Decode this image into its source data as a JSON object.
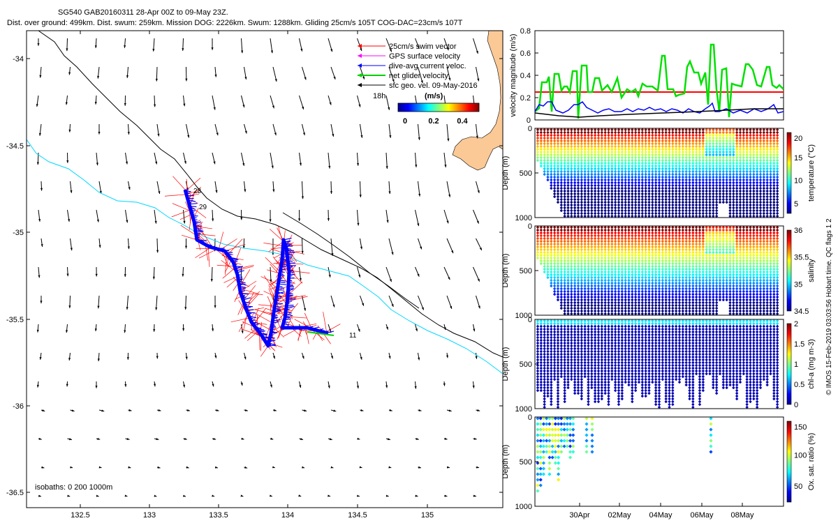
{
  "header": {
    "line1": "SG540 GAB20160311 28-Apr 00Z to 09-May 23Z.",
    "line2": "Dist. over ground: 499km. Dist. swum: 259km. Mission DOG: 2226km. Swum: 1288km. Gliding 25cm/s 105T COG-DAC=23cm/s 107T"
  },
  "map": {
    "lon_ticks": [
      "132.5",
      "133",
      "133.5",
      "134",
      "134.5",
      "135"
    ],
    "lat_ticks": [
      "-34",
      "-34.5",
      "-35",
      "-35.5",
      "-36",
      "-36.5"
    ],
    "isobaths_note": "isobaths: 0   200  1000m",
    "legend": [
      {
        "label": "25cm/s swim vector",
        "color": "#ff0000"
      },
      {
        "label": "GPS surface velocity",
        "color": "#ff00ff"
      },
      {
        "label": "dive-avg current veloc.",
        "color": "#0000ff"
      },
      {
        "label": "net glider velocity",
        "color": "#00d000"
      },
      {
        "label": "sfc geo. vel. 09-May-2016",
        "color": "#000000"
      }
    ],
    "time_label": "18h",
    "colorbar": {
      "unit": "(m/s)",
      "ticks": [
        "0",
        "0.2",
        "0.4"
      ]
    },
    "track_labels": [
      "28",
      "29",
      "11"
    ],
    "colors": {
      "land": "#fbc996",
      "isobath_0": "#000000",
      "isobath_200": "#00d8ff",
      "isobath_1000": "#000000"
    }
  },
  "velocity_panel": {
    "ylabel": "velocity magnitude (m/s)",
    "yticks": [
      "0",
      "0.2",
      "0.4",
      "0.6",
      "0.8"
    ],
    "ylim": [
      0,
      0.8
    ],
    "swim_level": 0.25
  },
  "section_panels": [
    {
      "ylabel": "Depth (m)",
      "yticks": [
        "0",
        "500",
        "1000"
      ],
      "cb_label": "temperature (°C)",
      "cb_ticks": [
        "5",
        "10",
        "15",
        "20"
      ]
    },
    {
      "ylabel": "Depth (m)",
      "yticks": [
        "0",
        "500",
        "1000"
      ],
      "cb_label": "salinity",
      "cb_ticks": [
        "34.5",
        "35",
        "35.5",
        "36"
      ]
    },
    {
      "ylabel": "Depth (m)",
      "yticks": [
        "0",
        "500",
        "1000"
      ],
      "cb_label": "chl-a (mg m-3)",
      "cb_ticks": [
        "0",
        "0.5",
        "1",
        "1.5",
        "2"
      ]
    },
    {
      "ylabel": "Depth (m)",
      "yticks": [
        "0",
        "500",
        "1000"
      ],
      "cb_label": "Ox. sat. ratio (%)",
      "cb_ticks": [
        "50",
        "100",
        "150"
      ]
    }
  ],
  "time_ticks": [
    "30Apr",
    "02May",
    "04May",
    "06May",
    "08May"
  ],
  "credit": "© IMOS 15-Feb-2019 03:03:56 Hobart time. QC flags 1  2"
}
